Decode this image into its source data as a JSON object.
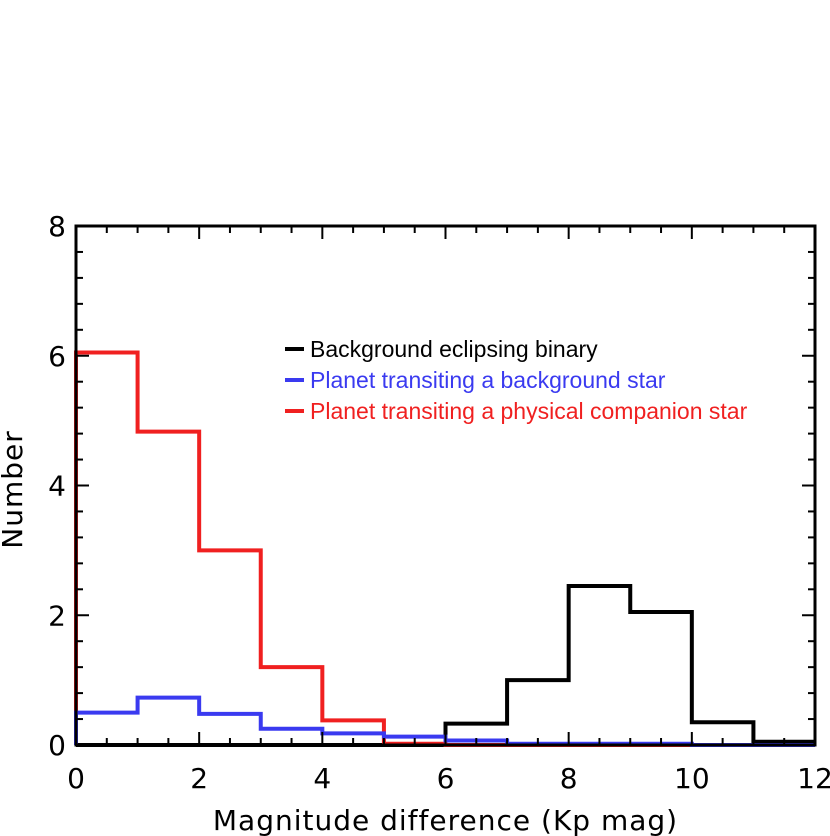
{
  "chart_data": {
    "type": "histogram",
    "title": "",
    "xlabel": "Magnitude difference (Kp mag)",
    "ylabel": "Number",
    "xlim": [
      0,
      12
    ],
    "ylim": [
      0,
      8
    ],
    "x_ticks": [
      "0",
      "2",
      "4",
      "6",
      "8",
      "10",
      "12"
    ],
    "y_ticks": [
      "0",
      "2",
      "4",
      "6",
      "8"
    ],
    "bin_edges": [
      0,
      1,
      2,
      3,
      4,
      5,
      6,
      7,
      8,
      9,
      10,
      11,
      12
    ],
    "legend_position": "upper-right",
    "series": [
      {
        "name": "Background eclipsing binary",
        "color": "#000000",
        "values": [
          0,
          0,
          0,
          0,
          0,
          0,
          0.33,
          1.0,
          2.45,
          2.05,
          0.35,
          0.05
        ]
      },
      {
        "name": "Planet transiting a background star",
        "color": "#3a3af0",
        "values": [
          0.5,
          0.73,
          0.48,
          0.25,
          0.18,
          0.13,
          0.07,
          0.02,
          0.02,
          0.02,
          0.0,
          0.0
        ]
      },
      {
        "name": "Planet transiting a physical companion star",
        "color": "#f02020",
        "values": [
          6.05,
          4.83,
          3.0,
          1.2,
          0.38,
          0.02,
          0.0,
          0.0,
          0.0,
          0.0,
          0.0,
          0.0
        ]
      }
    ]
  }
}
